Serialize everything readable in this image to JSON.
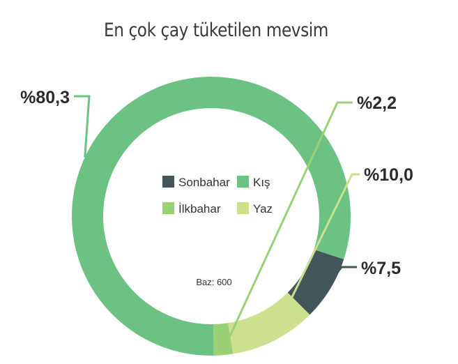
{
  "chart_data": {
    "type": "pie",
    "title": "En çok çay tüketilen mevsim",
    "note": "Baz: 600",
    "labels": [
      "Sonbahar",
      "Kış",
      "İlkbahar",
      "Yaz"
    ],
    "values": [
      7.5,
      80.3,
      2.2,
      10.0
    ],
    "value_labels": [
      "%7,5",
      "%80,3",
      "%2,2",
      "%10,0"
    ],
    "colors": [
      "#43575a",
      "#6cc282",
      "#9ad175",
      "#cde08e"
    ],
    "legend_placement": "center",
    "donut": true
  }
}
